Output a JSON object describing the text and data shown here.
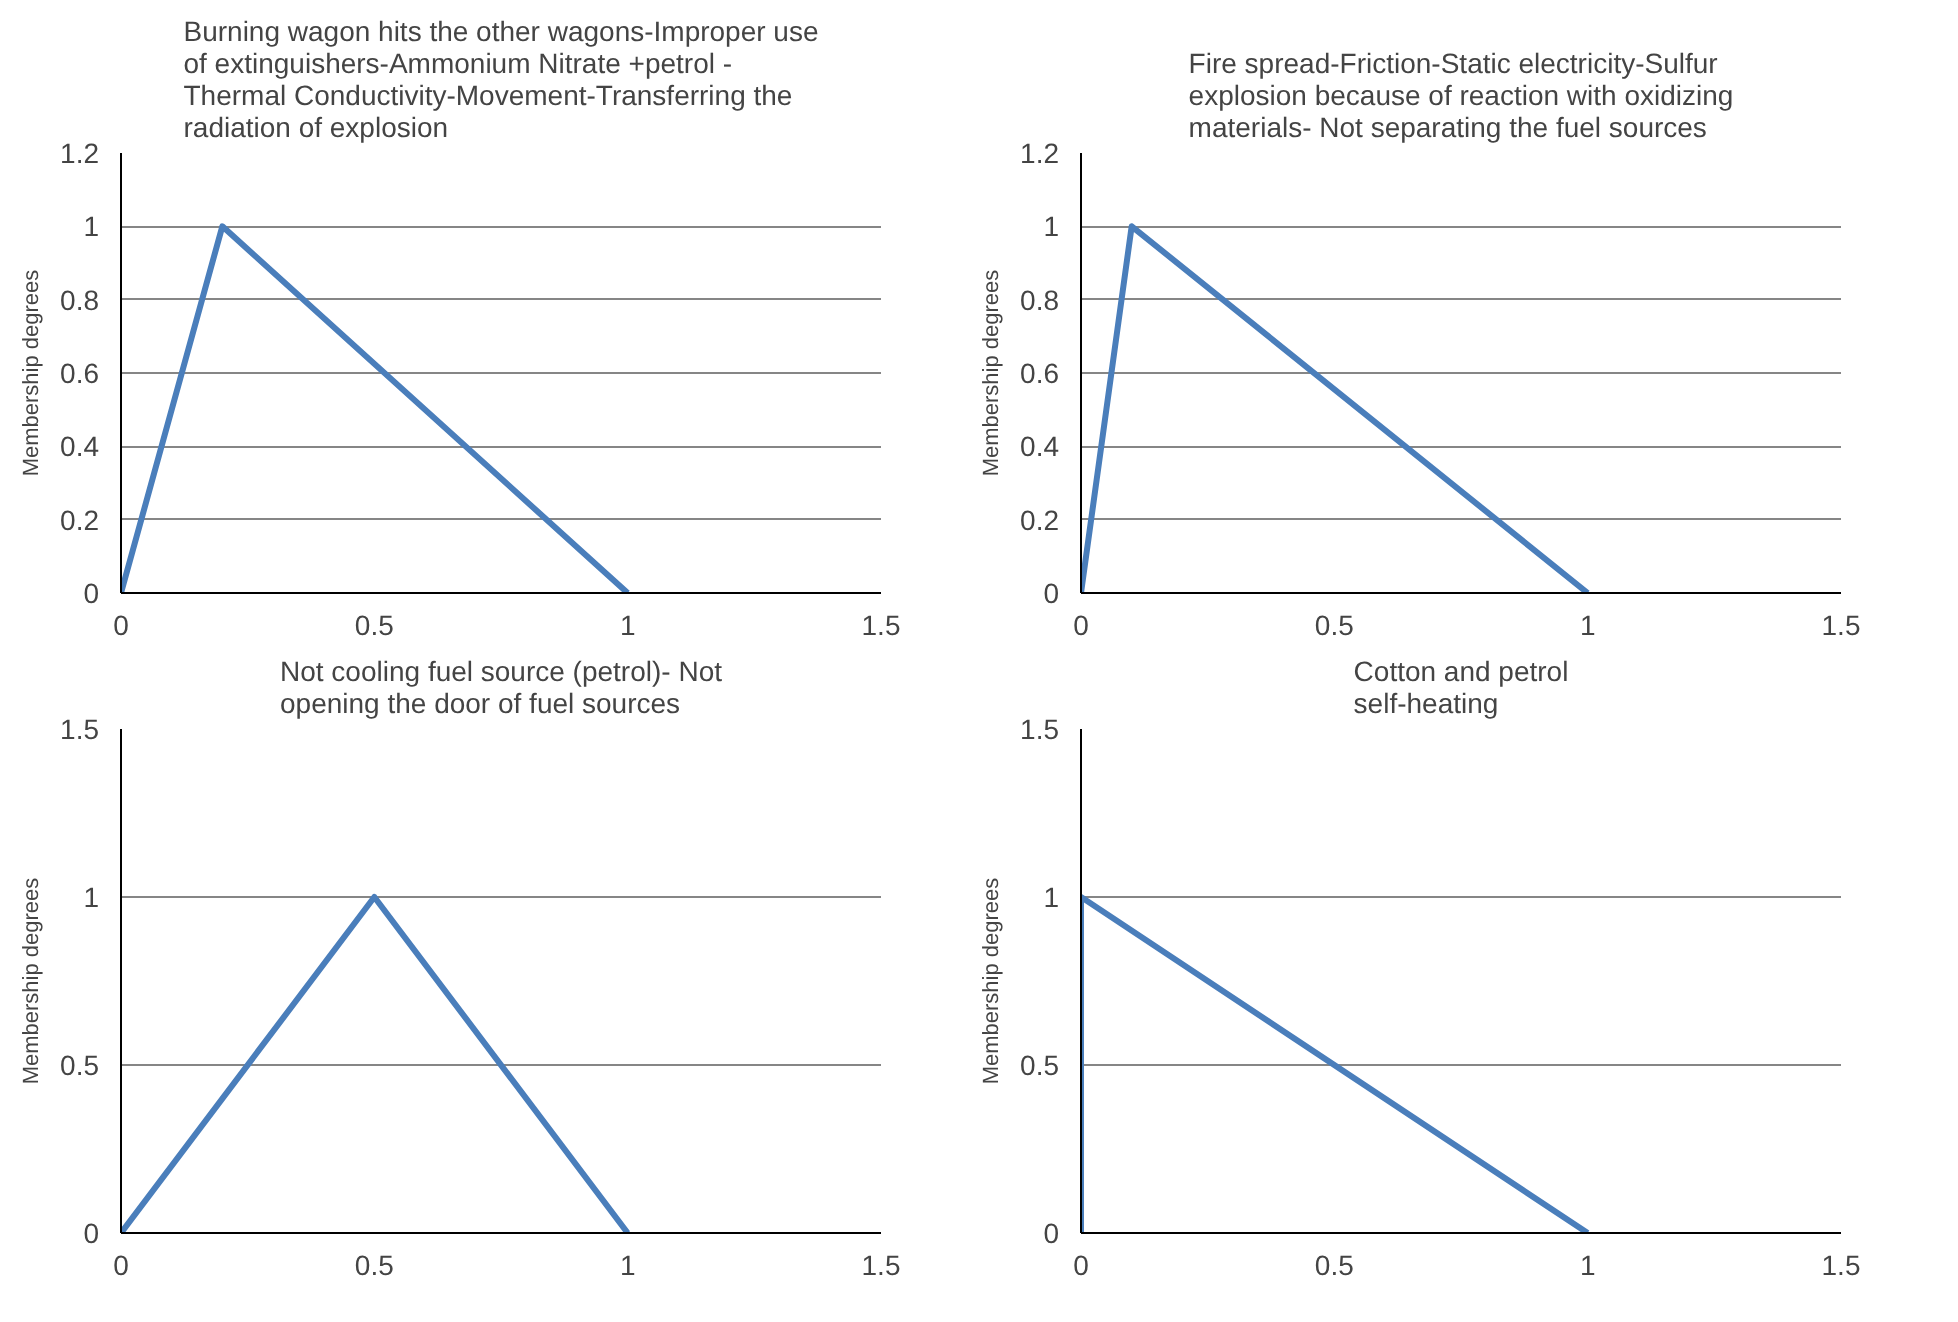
{
  "chart_data": [
    {
      "type": "line",
      "title": "Burning wagon hits the other wagons-Improper use\nof extinguishers-Ammonium Nitrate +petrol -\nThermal Conductivity-Movement-Transferring the\nradiation of explosion",
      "ylabel": "Membership degrees",
      "x": [
        0,
        0.2,
        1
      ],
      "series": [
        {
          "color": "#4a7ebb",
          "values": [
            0,
            1,
            0
          ]
        }
      ],
      "xlim": [
        0,
        1.5
      ],
      "xticks": [
        0,
        0.5,
        1,
        1.5
      ],
      "ylim": [
        0,
        1.2
      ],
      "yticks": [
        0,
        0.2,
        0.4,
        0.6,
        0.8,
        1,
        1.2
      ],
      "grid": "y",
      "marker": "none",
      "line_style": "solid"
    },
    {
      "type": "line",
      "title": "Fire spread-Friction-Static electricity-Sulfur\nexplosion because of reaction with oxidizing\nmaterials- Not separating the fuel sources",
      "ylabel": "Membership degrees",
      "x": [
        0,
        0.1,
        1
      ],
      "series": [
        {
          "color": "#4a7ebb",
          "values": [
            0,
            1,
            0
          ]
        }
      ],
      "xlim": [
        0,
        1.5
      ],
      "xticks": [
        0,
        0.5,
        1,
        1.5
      ],
      "ylim": [
        0,
        1.2
      ],
      "yticks": [
        0,
        0.2,
        0.4,
        0.6,
        0.8,
        1,
        1.2
      ],
      "grid": "y",
      "marker": "none",
      "line_style": "solid"
    },
    {
      "type": "line",
      "title": "Not cooling fuel source (petrol)- Not\nopening the door of fuel sources",
      "ylabel": "Membership degrees",
      "x": [
        0,
        0.5,
        1
      ],
      "series": [
        {
          "color": "#4a7ebb",
          "values": [
            0,
            1,
            0
          ]
        }
      ],
      "xlim": [
        0,
        1.5
      ],
      "xticks": [
        0,
        0.5,
        1,
        1.5
      ],
      "ylim": [
        0,
        1.5
      ],
      "yticks": [
        0,
        0.5,
        1,
        1.5
      ],
      "grid": "y",
      "marker": "none",
      "line_style": "solid"
    },
    {
      "type": "line",
      "title": "Cotton and petrol\nself-heating",
      "ylabel": "Membership degrees",
      "x": [
        0,
        0,
        1
      ],
      "series": [
        {
          "color": "#4a7ebb",
          "values": [
            0,
            1,
            0
          ]
        }
      ],
      "xlim": [
        0,
        1.5
      ],
      "xticks": [
        0,
        0.5,
        1,
        1.5
      ],
      "ylim": [
        0,
        1.5
      ],
      "yticks": [
        0,
        0.5,
        1,
        1.5
      ],
      "grid": "y",
      "marker": "none",
      "line_style": "solid"
    }
  ]
}
